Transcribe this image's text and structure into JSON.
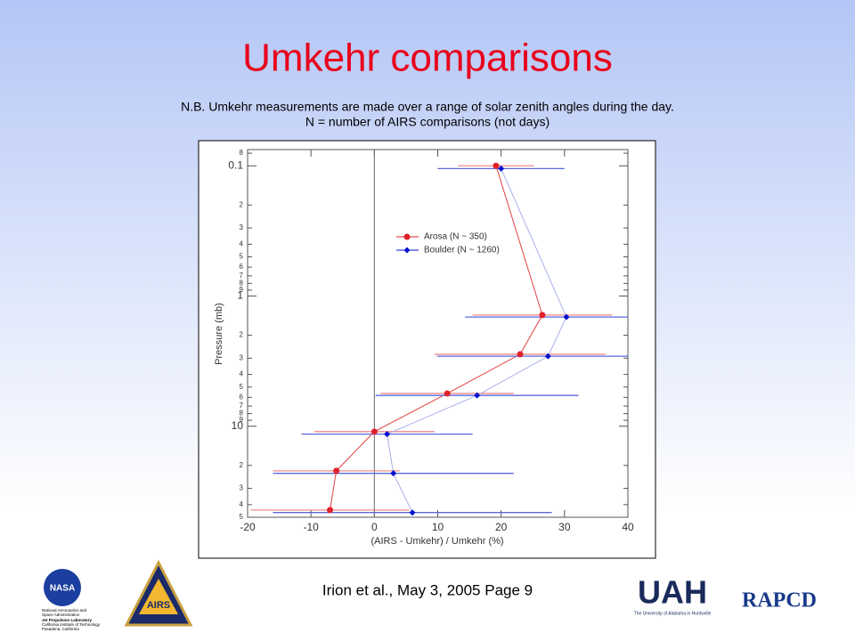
{
  "slide": {
    "title": "Umkehr comparisons",
    "notes": [
      "N.B. Umkehr measurements are made over a range of solar zenith angles during the day.",
      "N = number of AIRS comparisons (not days)"
    ],
    "footer": "Irion et al., May 3, 2005   Page 9",
    "logos": {
      "nasa": "NASA",
      "nasa_lines": [
        "National Aeronautics and",
        "Space Administration",
        "Jet Propulsion Laboratory",
        "California Institute of Technology",
        "Pasadena, California"
      ],
      "airs": "AIRS",
      "uah": "UAH",
      "uah_sub": "The University of Alabama in Huntsville",
      "rapcd": "RAPCD"
    }
  },
  "chart_data": {
    "type": "line",
    "xlabel": "(AIRS - Umkehr) / Umkehr (%)",
    "ylabel": "Pressure (mb)",
    "xlim": [
      -20,
      40
    ],
    "xticks": [
      -20,
      -10,
      0,
      10,
      20,
      30,
      40
    ],
    "ylim": [
      0.075,
      50
    ],
    "y_log": true,
    "y_inverted": true,
    "yticks": [
      {
        "value": 0.08,
        "label": "8"
      },
      0.1,
      {
        "value": 0.2,
        "label": "2"
      },
      {
        "value": 0.3,
        "label": "3"
      },
      {
        "value": 0.4,
        "label": "4"
      },
      {
        "value": 0.5,
        "label": "5"
      },
      {
        "value": 0.6,
        "label": "6"
      },
      {
        "value": 0.7,
        "label": "7"
      },
      {
        "value": 0.8,
        "label": "8"
      },
      {
        "value": 0.9,
        "label": "9"
      },
      1,
      {
        "value": 2,
        "label": "2"
      },
      {
        "value": 3,
        "label": "3"
      },
      {
        "value": 4,
        "label": "4"
      },
      {
        "value": 5,
        "label": "5"
      },
      {
        "value": 6,
        "label": "6"
      },
      {
        "value": 7,
        "label": "7"
      },
      {
        "value": 8,
        "label": "8"
      },
      {
        "value": 9,
        "label": "9"
      },
      10,
      {
        "value": 20,
        "label": "2"
      },
      {
        "value": 30,
        "label": "3"
      },
      {
        "value": 40,
        "label": "4"
      },
      {
        "value": 50,
        "label": "5"
      }
    ],
    "series": [
      {
        "name": "Arosa (N ~ 350)",
        "color": "#e0202a",
        "line_color": "#e04040",
        "err_color": "#f08a8a",
        "marker": "circle",
        "pressure": [
          0.1,
          1.4,
          2.8,
          5.6,
          11,
          22,
          44
        ],
        "values": [
          19.2,
          26.5,
          23,
          11.5,
          0,
          -6,
          -7
        ],
        "xerr": [
          6,
          11,
          13.5,
          10.5,
          9.5,
          10,
          12.5
        ]
      },
      {
        "name": "Boulder (N ~ 1260)",
        "color": "#0010d0",
        "line_color": "#a8b0e8",
        "err_color": "#5a6ae0",
        "marker": "diamond",
        "pressure": [
          0.105,
          1.45,
          2.9,
          5.8,
          11.5,
          23,
          46
        ],
        "values": [
          20,
          30.3,
          27.4,
          16.2,
          2,
          3,
          6
        ],
        "xerr": [
          10,
          16,
          17.5,
          16,
          13.5,
          19,
          22
        ]
      }
    ]
  }
}
